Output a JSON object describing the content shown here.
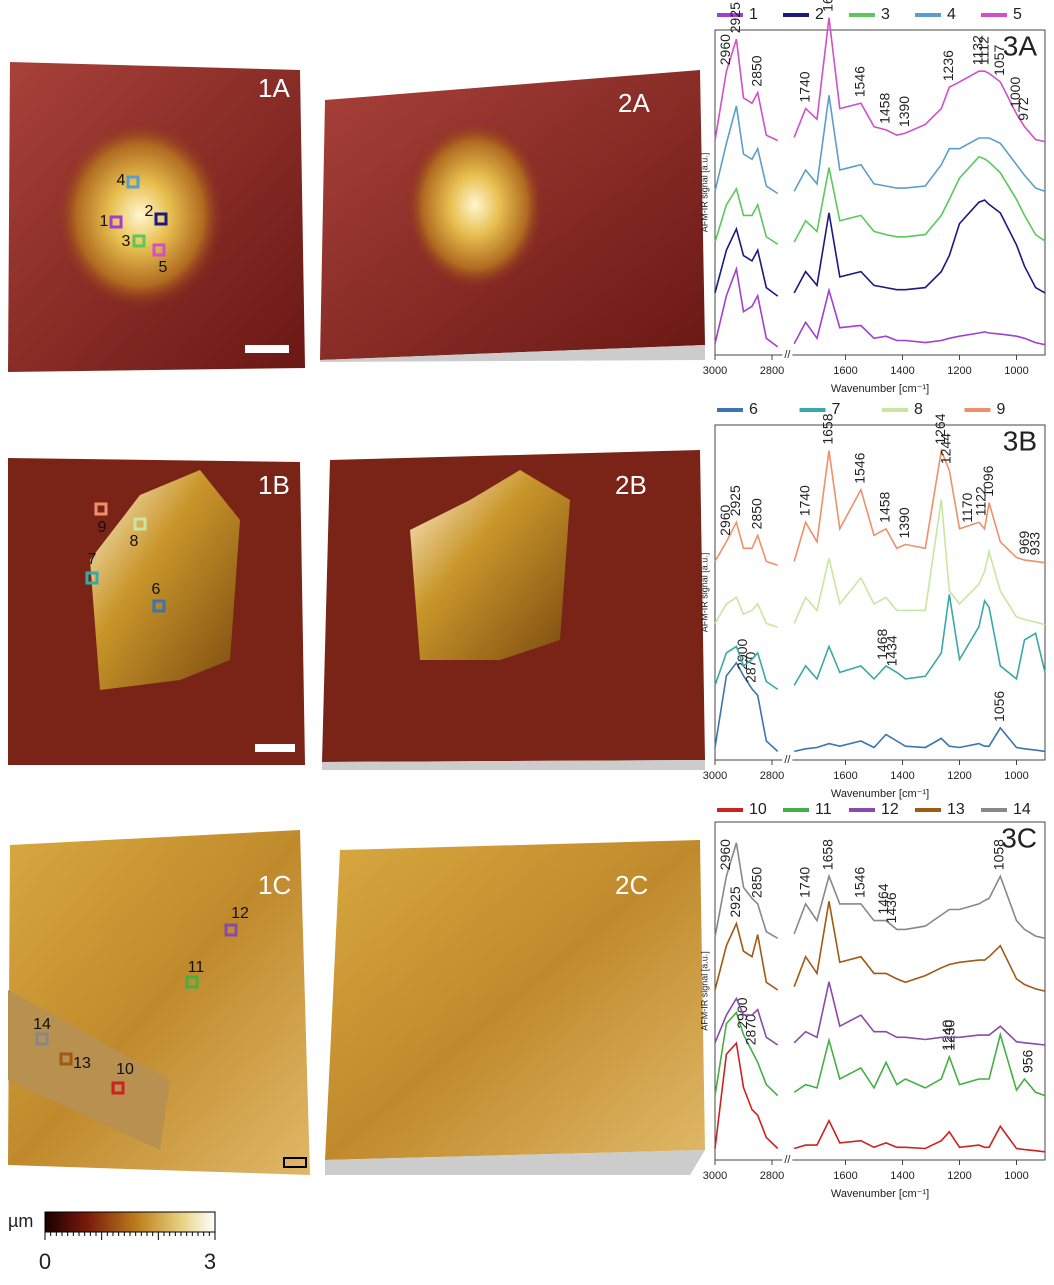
{
  "image_labels": [
    "1A",
    "2A",
    "1B",
    "2B",
    "1C",
    "2C"
  ],
  "colorbar": {
    "label": "µm",
    "min": 0,
    "max": 3
  },
  "chart_data": [
    {
      "type": "line",
      "title": "3A",
      "ylabel": "AFM-IR signal [a.u.]",
      "xlabel": "Wavenumber [cm⁻¹]",
      "xlim": [
        3000,
        900
      ],
      "xbreak": [
        2760,
        1790
      ],
      "xticks": [
        3000,
        2800,
        1600,
        1400,
        1200,
        1000
      ],
      "legend": "top",
      "x": [
        3000,
        2960,
        2925,
        2900,
        2870,
        2850,
        2820,
        2780,
        2000,
        1780,
        1740,
        1700,
        1658,
        1620,
        1546,
        1500,
        1458,
        1420,
        1390,
        1320,
        1264,
        1236,
        1200,
        1132,
        1112,
        1096,
        1057,
        1000,
        972,
        933,
        900
      ],
      "series": [
        {
          "name": "1",
          "color": "#a040d0",
          "values": [
            0.05,
            0.5,
            0.75,
            0.35,
            0.4,
            0.5,
            0.1,
            0.02,
            null,
            0.05,
            0.25,
            0.1,
            0.55,
            0.2,
            0.22,
            0.1,
            0.12,
            0.08,
            0.08,
            0.06,
            0.08,
            0.1,
            0.12,
            0.15,
            0.16,
            0.15,
            0.14,
            0.12,
            0.1,
            0.06,
            0.04
          ]
        },
        {
          "name": "2",
          "color": "#1a1a80",
          "values": [
            0.05,
            0.45,
            0.65,
            0.4,
            0.35,
            0.45,
            0.1,
            0.02,
            null,
            0.05,
            0.25,
            0.12,
            0.8,
            0.2,
            0.25,
            0.12,
            0.1,
            0.08,
            0.08,
            0.1,
            0.25,
            0.4,
            0.7,
            0.9,
            0.92,
            0.88,
            0.8,
            0.5,
            0.3,
            0.1,
            0.05
          ]
        },
        {
          "name": "3",
          "color": "#5cc85c",
          "values": [
            0.05,
            0.4,
            0.55,
            0.3,
            0.3,
            0.4,
            0.1,
            0.03,
            null,
            0.05,
            0.25,
            0.15,
            0.75,
            0.25,
            0.3,
            0.15,
            0.12,
            0.1,
            0.1,
            0.12,
            0.3,
            0.45,
            0.65,
            0.85,
            0.83,
            0.8,
            0.7,
            0.45,
            0.3,
            0.12,
            0.06
          ]
        },
        {
          "name": "4",
          "color": "#5b9ec9",
          "values": [
            0.05,
            0.5,
            0.85,
            0.4,
            0.35,
            0.45,
            0.1,
            0.03,
            null,
            0.05,
            0.25,
            0.12,
            0.95,
            0.25,
            0.3,
            0.12,
            0.1,
            0.08,
            0.08,
            0.1,
            0.3,
            0.45,
            0.45,
            0.55,
            0.55,
            0.55,
            0.5,
            0.3,
            0.2,
            0.08,
            0.05
          ]
        },
        {
          "name": "5",
          "color": "#d050c8",
          "values": [
            0.05,
            0.7,
            1.0,
            0.45,
            0.4,
            0.5,
            0.1,
            0.05,
            null,
            0.08,
            0.35,
            0.25,
            1.2,
            0.35,
            0.4,
            0.18,
            0.15,
            0.1,
            0.12,
            0.2,
            0.35,
            0.55,
            0.6,
            0.7,
            0.7,
            0.68,
            0.6,
            0.3,
            0.18,
            0.06,
            0.04
          ],
          "peaks": [
            2960,
            2925,
            2850,
            1740,
            1658,
            1546,
            1458,
            1390,
            1236,
            1132,
            1112,
            1057,
            1000,
            972
          ]
        }
      ]
    },
    {
      "type": "line",
      "title": "3B",
      "ylabel": "AFM-IR signal [a.u.]",
      "xlabel": "Wavenumber [cm⁻¹]",
      "xlim": [
        3000,
        900
      ],
      "xbreak": [
        2760,
        1790
      ],
      "xticks": [
        3000,
        2800,
        1600,
        1400,
        1200,
        1000
      ],
      "legend": "top",
      "x": [
        3000,
        2960,
        2925,
        2900,
        2870,
        2850,
        2820,
        2780,
        2000,
        1780,
        1740,
        1700,
        1658,
        1620,
        1546,
        1500,
        1458,
        1420,
        1390,
        1320,
        1264,
        1236,
        1200,
        1132,
        1112,
        1096,
        1057,
        1000,
        972,
        933,
        900
      ],
      "series": [
        {
          "name": "6",
          "color": "#3b74b0",
          "values": [
            0.05,
            0.6,
            0.7,
            0.6,
            0.5,
            0.45,
            0.1,
            0.02,
            null,
            0.02,
            0.04,
            0.05,
            0.08,
            0.06,
            0.1,
            0.05,
            0.15,
            0.1,
            0.06,
            0.05,
            0.12,
            0.06,
            0.05,
            0.08,
            0.06,
            0.06,
            0.2,
            0.05,
            0.04,
            0.03,
            0.02
          ],
          "peaks": [
            2900,
            2870,
            1056
          ]
        },
        {
          "name": "7",
          "color": "#3aa8a8",
          "values": [
            0.05,
            0.3,
            0.35,
            0.2,
            0.25,
            0.3,
            0.08,
            0.02,
            null,
            0.05,
            0.2,
            0.1,
            0.35,
            0.15,
            0.2,
            0.1,
            0.2,
            0.15,
            0.1,
            0.12,
            0.3,
            0.75,
            0.25,
            0.5,
            0.7,
            0.65,
            0.2,
            0.1,
            0.4,
            0.45,
            0.15
          ],
          "peaks": [
            1468,
            1434
          ]
        },
        {
          "name": "8",
          "color": "#c8e6a0",
          "values": [
            0.05,
            0.2,
            0.25,
            0.12,
            0.15,
            0.2,
            0.05,
            0.02,
            null,
            0.05,
            0.25,
            0.15,
            0.55,
            0.2,
            0.4,
            0.2,
            0.25,
            0.15,
            0.15,
            0.15,
            1.0,
            0.3,
            0.2,
            0.35,
            0.45,
            0.6,
            0.3,
            0.1,
            0.08,
            0.06,
            0.04
          ]
        },
        {
          "name": "9",
          "color": "#f0906a",
          "values": [
            0.05,
            0.2,
            0.35,
            0.15,
            0.15,
            0.25,
            0.05,
            0.02,
            null,
            0.05,
            0.35,
            0.2,
            0.9,
            0.3,
            0.6,
            0.25,
            0.3,
            0.15,
            0.18,
            0.15,
            0.9,
            0.75,
            0.3,
            0.35,
            0.3,
            0.5,
            0.2,
            0.08,
            0.06,
            0.05,
            0.04
          ],
          "peaks": [
            2960,
            2925,
            2850,
            1740,
            1658,
            1546,
            1458,
            1390,
            1264,
            1244,
            1170,
            1122,
            1096,
            969,
            933
          ]
        }
      ]
    },
    {
      "type": "line",
      "title": "3C",
      "ylabel": "AFM-IR signal [a.u.]",
      "xlabel": "Wavenumber [cm⁻¹]",
      "xlim": [
        3000,
        900
      ],
      "xbreak": [
        2760,
        1790
      ],
      "xticks": [
        3000,
        2800,
        1600,
        1400,
        1200,
        1000
      ],
      "legend": "top",
      "x": [
        3000,
        2960,
        2925,
        2900,
        2870,
        2850,
        2820,
        2780,
        2000,
        1780,
        1740,
        1700,
        1658,
        1620,
        1546,
        1500,
        1458,
        1420,
        1390,
        1320,
        1264,
        1236,
        1200,
        1132,
        1112,
        1096,
        1057,
        1000,
        972,
        933,
        900
      ],
      "series": [
        {
          "name": "10",
          "color": "#cc2222",
          "values": [
            0.05,
            0.9,
            1.0,
            0.6,
            0.4,
            0.35,
            0.15,
            0.05,
            null,
            0.05,
            0.08,
            0.08,
            0.3,
            0.1,
            0.12,
            0.06,
            0.1,
            0.06,
            0.06,
            0.05,
            0.12,
            0.2,
            0.06,
            0.08,
            0.06,
            0.06,
            0.25,
            0.05,
            0.04,
            0.03,
            0.02
          ]
        },
        {
          "name": "11",
          "color": "#44b044",
          "values": [
            0.05,
            0.7,
            0.8,
            0.6,
            0.45,
            0.35,
            0.15,
            0.05,
            null,
            0.08,
            0.15,
            0.12,
            0.55,
            0.2,
            0.3,
            0.12,
            0.35,
            0.15,
            0.2,
            0.12,
            0.2,
            0.4,
            0.15,
            0.2,
            0.2,
            0.2,
            0.6,
            0.1,
            0.2,
            0.08,
            0.05
          ],
          "peaks": [
            2900,
            2870,
            1240,
            1230,
            956
          ]
        },
        {
          "name": "12",
          "color": "#8a4aa8",
          "values": [
            0.05,
            0.3,
            0.45,
            0.3,
            0.3,
            0.35,
            0.1,
            0.03,
            null,
            0.05,
            0.15,
            0.1,
            0.6,
            0.2,
            0.3,
            0.15,
            0.15,
            0.1,
            0.1,
            0.08,
            0.1,
            0.1,
            0.1,
            0.12,
            0.12,
            0.12,
            0.2,
            0.06,
            0.05,
            0.04,
            0.03
          ]
        },
        {
          "name": "13",
          "color": "#a05a14",
          "values": [
            0.05,
            0.45,
            0.65,
            0.4,
            0.35,
            0.55,
            0.12,
            0.05,
            null,
            0.08,
            0.35,
            0.2,
            0.85,
            0.3,
            0.35,
            0.2,
            0.2,
            0.15,
            0.12,
            0.18,
            0.25,
            0.28,
            0.3,
            0.32,
            0.32,
            0.35,
            0.45,
            0.15,
            0.1,
            0.06,
            0.04
          ],
          "peaks": [
            2925
          ]
        },
        {
          "name": "14",
          "color": "#888888",
          "values": [
            0.05,
            0.6,
            0.9,
            0.5,
            0.4,
            0.35,
            0.1,
            0.04,
            null,
            0.08,
            0.35,
            0.2,
            0.6,
            0.35,
            0.35,
            0.2,
            0.2,
            0.12,
            0.12,
            0.15,
            0.25,
            0.3,
            0.3,
            0.35,
            0.38,
            0.4,
            0.6,
            0.2,
            0.12,
            0.06,
            0.04
          ],
          "peaks": [
            2960,
            2850,
            1740,
            1658,
            1546,
            1464,
            1436,
            1058
          ]
        }
      ]
    }
  ]
}
